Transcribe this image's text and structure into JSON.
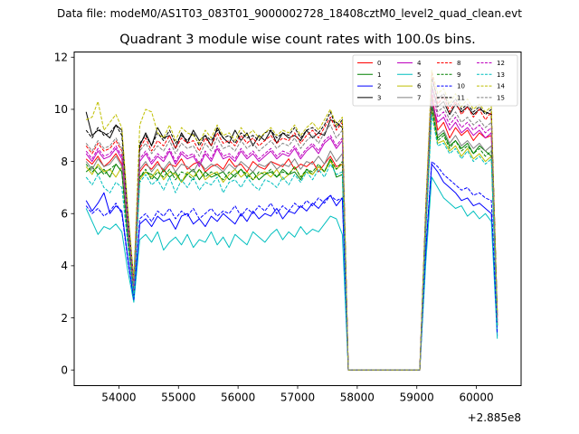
{
  "suptitle": "Data file: modeM0/AS1T03_083T01_9000002728_18408cztM0_level2_quad_clean.evt",
  "chart_data": {
    "type": "line",
    "title": "Quadrant 3 module wise count rates with 100.0s bins.",
    "xlabel": "",
    "ylabel": "",
    "offset_label": "+2.885e8",
    "xlim": [
      53250,
      60750
    ],
    "ylim": [
      -0.6,
      12.2
    ],
    "xticks": [
      54000,
      55000,
      56000,
      57000,
      58000,
      59000,
      60000
    ],
    "yticks": [
      0,
      2,
      4,
      6,
      8,
      10,
      12
    ],
    "x": [
      53450,
      53550,
      53650,
      53750,
      53850,
      53950,
      54050,
      54150,
      54250,
      54350,
      54450,
      54550,
      54650,
      54750,
      54850,
      54950,
      55050,
      55150,
      55250,
      55350,
      55450,
      55550,
      55650,
      55750,
      55850,
      55950,
      56050,
      56150,
      56250,
      56350,
      56450,
      56550,
      56650,
      56750,
      56850,
      56950,
      57050,
      57150,
      57250,
      57350,
      57450,
      57550,
      57650,
      57750,
      57850,
      58050,
      58250,
      58450,
      58650,
      58850,
      59050,
      59150,
      59250,
      59350,
      59450,
      59550,
      59650,
      59750,
      59850,
      59950,
      60050,
      60150,
      60250,
      60350
    ],
    "series": [
      {
        "name": "0",
        "color": "#ff0000",
        "dash": false,
        "values": [
          8.1,
          7.9,
          8.2,
          7.8,
          8.0,
          8.3,
          7.9,
          5.2,
          3.0,
          7.6,
          7.9,
          7.7,
          8.0,
          7.6,
          7.9,
          7.8,
          8.1,
          7.7,
          7.9,
          8.0,
          7.6,
          7.8,
          7.9,
          7.7,
          8.1,
          7.8,
          7.9,
          7.6,
          8.0,
          7.8,
          7.7,
          8.0,
          7.9,
          7.8,
          8.1,
          7.7,
          7.9,
          7.8,
          8.0,
          7.6,
          7.9,
          8.2,
          7.8,
          7.9,
          0.0,
          0.0,
          0.0,
          0.0,
          0.0,
          0.0,
          0.0,
          5.6,
          10.6,
          9.2,
          9.5,
          8.9,
          9.3,
          9.0,
          9.2,
          8.8,
          9.1,
          8.9,
          9.0,
          1.8
        ]
      },
      {
        "name": "1",
        "color": "#008000",
        "dash": false,
        "values": [
          7.6,
          7.8,
          7.5,
          7.7,
          7.4,
          7.9,
          7.6,
          5.0,
          2.9,
          7.4,
          7.6,
          7.5,
          7.3,
          7.7,
          7.4,
          7.6,
          7.2,
          7.5,
          7.7,
          7.3,
          7.6,
          7.4,
          7.5,
          7.6,
          7.3,
          7.5,
          7.7,
          7.4,
          7.6,
          7.3,
          7.5,
          7.6,
          7.4,
          7.7,
          7.5,
          7.6,
          7.3,
          7.7,
          7.5,
          7.8,
          7.6,
          8.1,
          7.4,
          7.5,
          0.0,
          0.0,
          0.0,
          0.0,
          0.0,
          0.0,
          0.0,
          5.4,
          10.4,
          8.9,
          9.1,
          8.6,
          8.8,
          8.5,
          8.7,
          8.3,
          8.6,
          8.4,
          8.2,
          1.7
        ]
      },
      {
        "name": "2",
        "color": "#0000ff",
        "dash": false,
        "values": [
          6.5,
          6.1,
          6.4,
          6.8,
          6.0,
          6.3,
          6.1,
          4.3,
          2.7,
          5.6,
          5.8,
          5.5,
          5.9,
          5.7,
          5.8,
          5.4,
          5.9,
          6.0,
          5.6,
          5.8,
          5.5,
          5.9,
          5.7,
          6.0,
          5.8,
          5.6,
          6.0,
          5.7,
          6.1,
          5.8,
          6.0,
          5.9,
          6.2,
          5.8,
          6.1,
          6.0,
          6.3,
          6.1,
          6.4,
          6.2,
          6.5,
          6.7,
          6.3,
          6.6,
          0.0,
          0.0,
          0.0,
          0.0,
          0.0,
          0.0,
          0.0,
          4.5,
          7.9,
          7.6,
          7.2,
          7.0,
          6.8,
          6.5,
          6.6,
          6.3,
          6.4,
          6.2,
          6.0,
          1.3
        ]
      },
      {
        "name": "3",
        "color": "#000000",
        "dash": false,
        "values": [
          9.9,
          9.0,
          9.2,
          9.1,
          8.9,
          9.4,
          9.2,
          6.0,
          3.4,
          8.6,
          9.1,
          8.6,
          9.3,
          8.9,
          9.0,
          8.5,
          9.1,
          8.7,
          9.2,
          8.8,
          9.0,
          8.6,
          9.3,
          8.9,
          8.7,
          9.2,
          8.8,
          9.1,
          8.6,
          9.0,
          8.8,
          9.2,
          8.7,
          9.1,
          8.9,
          9.0,
          8.8,
          9.2,
          8.9,
          9.1,
          9.0,
          9.6,
          9.5,
          9.3,
          0.0,
          0.0,
          0.0,
          0.0,
          0.0,
          0.0,
          0.0,
          6.2,
          10.9,
          10.1,
          10.3,
          9.8,
          10.2,
          9.9,
          10.1,
          9.8,
          10.0,
          9.9,
          9.8,
          2.2
        ]
      },
      {
        "name": "4",
        "color": "#bf00bf",
        "dash": false,
        "values": [
          8.3,
          8.0,
          8.4,
          8.1,
          8.2,
          8.5,
          8.1,
          5.5,
          3.1,
          8.0,
          8.3,
          7.9,
          8.2,
          8.0,
          8.4,
          7.9,
          8.3,
          8.1,
          8.2,
          7.8,
          8.3,
          8.0,
          8.5,
          8.1,
          8.2,
          8.0,
          8.4,
          8.1,
          8.3,
          8.0,
          8.2,
          8.4,
          8.1,
          8.3,
          8.2,
          8.5,
          8.1,
          8.4,
          8.6,
          8.3,
          8.7,
          8.9,
          8.5,
          8.8,
          0.0,
          0.0,
          0.0,
          0.0,
          0.0,
          0.0,
          0.0,
          5.8,
          10.3,
          9.5,
          9.7,
          9.2,
          9.5,
          9.1,
          9.3,
          9.0,
          9.2,
          8.9,
          9.1,
          1.9
        ]
      },
      {
        "name": "5",
        "color": "#00bfbf",
        "dash": false,
        "values": [
          6.2,
          5.7,
          5.2,
          5.5,
          5.4,
          5.6,
          5.3,
          3.8,
          2.6,
          5.0,
          5.2,
          4.9,
          5.3,
          4.6,
          4.9,
          5.1,
          4.8,
          5.2,
          4.7,
          5.0,
          4.9,
          5.3,
          4.8,
          5.1,
          4.7,
          5.2,
          5.0,
          4.8,
          5.3,
          5.1,
          4.9,
          5.2,
          5.4,
          5.0,
          5.3,
          5.1,
          5.5,
          5.2,
          5.4,
          5.3,
          5.6,
          5.9,
          5.8,
          5.2,
          0.0,
          0.0,
          0.0,
          0.0,
          0.0,
          0.0,
          0.0,
          4.1,
          7.4,
          7.0,
          6.6,
          6.4,
          6.2,
          6.3,
          5.9,
          6.1,
          5.8,
          6.0,
          5.7,
          1.2
        ]
      },
      {
        "name": "6",
        "color": "#bfbf00",
        "dash": false,
        "values": [
          7.8,
          7.5,
          7.9,
          7.6,
          7.7,
          7.4,
          7.8,
          5.1,
          2.9,
          7.3,
          7.6,
          7.4,
          7.7,
          7.3,
          7.6,
          7.5,
          7.2,
          7.6,
          7.4,
          7.7,
          7.3,
          7.5,
          7.6,
          7.2,
          7.5,
          7.7,
          7.4,
          7.6,
          7.3,
          7.5,
          7.6,
          7.4,
          7.7,
          7.3,
          7.5,
          7.8,
          7.4,
          7.6,
          7.5,
          7.8,
          7.6,
          8.0,
          7.7,
          7.9,
          0.0,
          0.0,
          0.0,
          0.0,
          0.0,
          0.0,
          0.0,
          5.3,
          10.0,
          8.7,
          8.8,
          8.4,
          8.6,
          8.2,
          8.5,
          8.1,
          8.3,
          8.0,
          8.2,
          1.7
        ]
      },
      {
        "name": "7",
        "color": "#808080",
        "dash": false,
        "values": [
          8.0,
          7.7,
          8.1,
          7.8,
          7.9,
          8.2,
          7.8,
          5.3,
          3.0,
          7.7,
          8.0,
          7.6,
          7.9,
          7.7,
          8.0,
          7.6,
          7.9,
          7.8,
          7.6,
          8.0,
          7.7,
          7.9,
          7.8,
          7.6,
          7.9,
          7.7,
          8.0,
          7.8,
          7.6,
          7.9,
          7.8,
          8.0,
          7.7,
          7.9,
          7.8,
          8.1,
          7.7,
          8.0,
          7.9,
          8.2,
          7.9,
          8.4,
          8.0,
          8.3,
          0.0,
          0.0,
          0.0,
          0.0,
          0.0,
          0.0,
          0.0,
          5.5,
          10.2,
          9.0,
          9.2,
          8.7,
          9.0,
          8.6,
          8.8,
          8.5,
          8.7,
          8.4,
          8.6,
          1.8
        ]
      },
      {
        "name": "8",
        "color": "#ff0000",
        "dash": true,
        "values": [
          8.6,
          8.3,
          8.7,
          8.4,
          8.5,
          8.8,
          8.4,
          5.7,
          3.2,
          8.5,
          8.9,
          8.4,
          8.8,
          8.6,
          9.0,
          8.5,
          8.9,
          8.7,
          8.8,
          8.4,
          8.9,
          8.6,
          9.1,
          8.7,
          8.8,
          8.6,
          9.0,
          8.7,
          8.9,
          8.6,
          8.8,
          9.0,
          8.7,
          8.9,
          8.8,
          9.1,
          8.7,
          9.0,
          9.2,
          8.9,
          9.3,
          9.7,
          9.2,
          9.5,
          0.0,
          0.0,
          0.0,
          0.0,
          0.0,
          0.0,
          0.0,
          6.0,
          11.4,
          10.2,
          10.5,
          9.9,
          10.3,
          9.8,
          10.1,
          9.7,
          10.0,
          9.6,
          9.9,
          2.0
        ]
      },
      {
        "name": "9",
        "color": "#008000",
        "dash": true,
        "values": [
          7.9,
          7.6,
          7.8,
          7.5,
          7.7,
          7.9,
          7.6,
          5.1,
          2.9,
          7.4,
          7.7,
          7.3,
          7.6,
          7.4,
          7.7,
          7.3,
          7.6,
          7.5,
          7.3,
          7.7,
          7.4,
          7.6,
          7.5,
          7.3,
          7.6,
          7.4,
          7.7,
          7.5,
          7.3,
          7.6,
          7.5,
          7.7,
          7.4,
          7.6,
          7.5,
          7.8,
          7.4,
          7.7,
          7.6,
          7.9,
          7.6,
          8.1,
          7.7,
          8.0,
          0.0,
          0.0,
          0.0,
          0.0,
          0.0,
          0.0,
          0.0,
          5.4,
          10.1,
          8.8,
          9.0,
          8.5,
          8.8,
          8.4,
          8.6,
          8.3,
          8.5,
          8.2,
          8.4,
          1.7
        ]
      },
      {
        "name": "10",
        "color": "#0000ff",
        "dash": true,
        "values": [
          6.3,
          6.0,
          6.2,
          5.9,
          6.1,
          6.4,
          6.0,
          4.2,
          2.7,
          5.8,
          6.0,
          5.7,
          6.1,
          5.9,
          6.2,
          5.8,
          6.1,
          5.9,
          6.2,
          5.8,
          6.0,
          6.2,
          5.9,
          6.1,
          6.0,
          6.3,
          5.9,
          6.2,
          6.0,
          6.3,
          6.1,
          6.4,
          6.0,
          6.3,
          6.1,
          6.4,
          6.2,
          6.5,
          6.3,
          6.6,
          6.4,
          6.7,
          6.5,
          6.6,
          0.0,
          0.0,
          0.0,
          0.0,
          0.0,
          0.0,
          0.0,
          4.6,
          8.0,
          7.8,
          7.5,
          7.3,
          7.1,
          6.9,
          7.0,
          6.7,
          6.8,
          6.6,
          6.5,
          1.4
        ]
      },
      {
        "name": "11",
        "color": "#000000",
        "dash": true,
        "values": [
          9.2,
          8.9,
          9.3,
          9.0,
          9.1,
          9.4,
          9.0,
          6.0,
          3.3,
          8.7,
          9.0,
          8.6,
          9.1,
          8.8,
          9.2,
          8.7,
          9.0,
          8.8,
          9.1,
          8.6,
          9.0,
          8.8,
          9.2,
          8.9,
          9.0,
          8.7,
          9.1,
          8.9,
          9.0,
          8.8,
          9.1,
          9.2,
          8.9,
          9.1,
          9.0,
          9.3,
          8.9,
          9.2,
          9.3,
          9.1,
          9.4,
          9.9,
          9.3,
          9.6,
          0.0,
          0.0,
          0.0,
          0.0,
          0.0,
          0.0,
          0.0,
          6.1,
          11.2,
          10.4,
          10.6,
          10.1,
          10.4,
          10.0,
          10.2,
          9.9,
          10.1,
          9.8,
          10.0,
          2.1
        ]
      },
      {
        "name": "12",
        "color": "#bf00bf",
        "dash": true,
        "values": [
          8.4,
          8.1,
          8.5,
          8.2,
          8.3,
          8.6,
          8.2,
          5.6,
          3.1,
          8.1,
          8.4,
          8.0,
          8.3,
          8.1,
          8.5,
          8.0,
          8.4,
          8.2,
          8.3,
          7.9,
          8.4,
          8.1,
          8.6,
          8.2,
          8.3,
          8.1,
          8.5,
          8.2,
          8.4,
          8.1,
          8.3,
          8.5,
          8.2,
          8.4,
          8.3,
          8.6,
          8.2,
          8.5,
          8.7,
          8.4,
          8.8,
          9.0,
          8.6,
          8.9,
          0.0,
          0.0,
          0.0,
          0.0,
          0.0,
          0.0,
          0.0,
          5.9,
          10.8,
          9.7,
          9.9,
          9.4,
          9.7,
          9.3,
          9.5,
          9.2,
          9.4,
          9.1,
          9.3,
          1.9
        ]
      },
      {
        "name": "13",
        "color": "#00bfbf",
        "dash": true,
        "values": [
          7.4,
          7.1,
          7.5,
          7.0,
          6.8,
          7.2,
          7.0,
          4.8,
          2.8,
          7.2,
          7.5,
          7.1,
          7.3,
          6.9,
          7.4,
          6.8,
          7.3,
          7.0,
          7.4,
          6.9,
          7.2,
          7.1,
          7.4,
          6.8,
          7.2,
          7.3,
          7.0,
          7.4,
          7.1,
          6.9,
          7.3,
          7.2,
          7.0,
          7.4,
          7.1,
          7.5,
          7.2,
          7.6,
          7.3,
          7.7,
          7.4,
          7.9,
          7.5,
          7.6,
          0.0,
          0.0,
          0.0,
          0.0,
          0.0,
          0.0,
          0.0,
          5.2,
          9.8,
          8.6,
          8.7,
          8.3,
          8.5,
          8.1,
          8.4,
          8.0,
          8.2,
          7.9,
          8.1,
          1.6
        ]
      },
      {
        "name": "14",
        "color": "#bfbf00",
        "dash": true,
        "values": [
          9.6,
          9.7,
          10.3,
          9.2,
          9.5,
          9.8,
          9.3,
          6.2,
          3.5,
          9.4,
          10.0,
          9.9,
          9.1,
          8.9,
          9.4,
          8.8,
          9.3,
          9.1,
          9.0,
          8.7,
          9.2,
          8.9,
          9.4,
          9.0,
          9.1,
          8.8,
          9.3,
          9.0,
          9.2,
          8.9,
          9.1,
          9.3,
          9.0,
          9.2,
          9.1,
          9.4,
          9.0,
          9.3,
          9.5,
          9.2,
          9.6,
          10.0,
          9.4,
          9.7,
          0.0,
          0.0,
          0.0,
          0.0,
          0.0,
          0.0,
          0.0,
          6.3,
          11.5,
          10.6,
          10.8,
          10.2,
          10.6,
          10.1,
          10.4,
          10.0,
          10.2,
          9.9,
          10.1,
          2.2
        ]
      },
      {
        "name": "15",
        "color": "#808080",
        "dash": true,
        "values": [
          8.7,
          8.4,
          8.8,
          8.5,
          8.6,
          8.9,
          8.5,
          5.8,
          3.2,
          8.4,
          8.7,
          8.3,
          8.6,
          8.4,
          8.8,
          8.3,
          8.7,
          8.5,
          8.6,
          8.2,
          8.7,
          8.4,
          8.9,
          8.5,
          8.6,
          8.4,
          8.8,
          8.5,
          8.7,
          8.4,
          8.6,
          8.8,
          8.5,
          8.7,
          8.6,
          8.9,
          8.5,
          8.8,
          9.0,
          8.7,
          9.1,
          9.4,
          8.9,
          9.2,
          0.0,
          0.0,
          0.0,
          0.0,
          0.0,
          0.0,
          0.0,
          5.9,
          11.0,
          9.9,
          10.1,
          9.6,
          9.9,
          9.5,
          9.7,
          9.4,
          9.6,
          9.3,
          9.5,
          2.0
        ]
      }
    ]
  }
}
